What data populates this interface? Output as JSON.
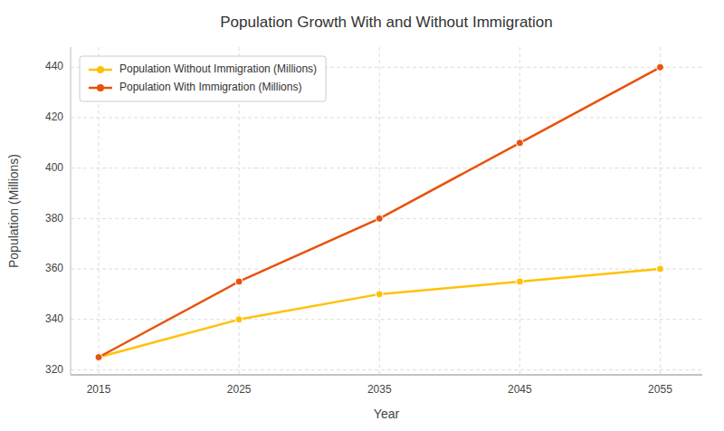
{
  "chart_data": {
    "type": "line",
    "title": "Population Growth With and Without Immigration",
    "xlabel": "Year",
    "ylabel": "Population (Millions)",
    "x": [
      2015,
      2025,
      2035,
      2045,
      2055
    ],
    "series": [
      {
        "name": "Population Without Immigration (Millions)",
        "color": "#FFC107",
        "values": [
          325,
          340,
          350,
          355,
          360
        ]
      },
      {
        "name": "Population With Immigration (Millions)",
        "color": "#E8520A",
        "values": [
          325,
          355,
          380,
          410,
          440
        ]
      }
    ],
    "xlim": [
      2013,
      2058
    ],
    "xticks": [
      2015,
      2025,
      2035,
      2045,
      2055
    ],
    "ylim": [
      318,
      448
    ],
    "yticks": [
      320,
      340,
      360,
      380,
      400,
      420,
      440
    ],
    "grid": true,
    "legend": "upper left",
    "marker": "circle"
  }
}
